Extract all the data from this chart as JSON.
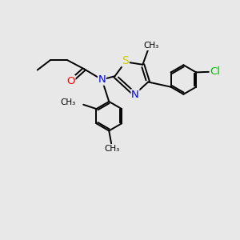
{
  "bg_color": "#e8e8e8",
  "atom_colors": {
    "N": "#0000ff",
    "O": "#ff0000",
    "S": "#cccc00",
    "Cl": "#00bb00"
  },
  "bond_color": "#000000",
  "bond_lw": 1.4,
  "font_size": 9.5,
  "figsize": [
    3.0,
    3.0
  ],
  "dpi": 100,
  "xlim": [
    0,
    10
  ],
  "ylim": [
    0,
    10
  ]
}
